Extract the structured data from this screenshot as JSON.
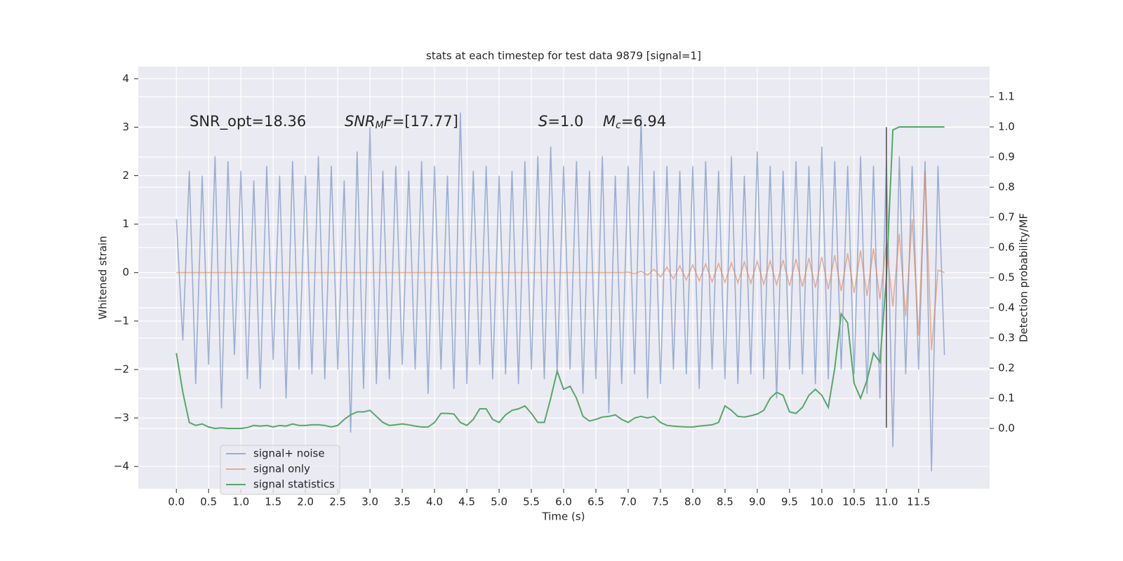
{
  "chart_data": {
    "type": "line",
    "title": "stats at each timestep for test data 9879 [signal=1]",
    "xlabel": "Time (s)",
    "ylabel": "Whitened strain",
    "y2label": "Detection probability/MF",
    "xlim": [
      -0.59,
      12.6
    ],
    "ylim": [
      -4.46,
      4.25
    ],
    "y2lim": [
      -0.2,
      1.2
    ],
    "xticks": [
      {
        "value": 0,
        "label": "0.0"
      },
      0.5,
      {
        "value": 1,
        "label": "1.0"
      },
      1.5,
      {
        "value": 2,
        "label": "2.0"
      },
      2.5,
      {
        "value": 3,
        "label": "3.0"
      },
      3.5,
      {
        "value": 4,
        "label": "4.0"
      },
      4.5,
      {
        "value": 5,
        "label": "5.0"
      },
      5.5,
      {
        "value": 6,
        "label": "6.0"
      },
      6.5,
      {
        "value": 7,
        "label": "7.0"
      },
      7.5,
      {
        "value": 8,
        "label": "8.0"
      },
      8.5,
      {
        "value": 9,
        "label": "9.0"
      },
      9.5,
      {
        "value": 10,
        "label": "10.0"
      },
      10.5,
      {
        "value": 11,
        "label": "11.0"
      },
      11.5
    ],
    "yticks": [
      {
        "value": -4,
        "label": "−4"
      },
      {
        "value": -3,
        "label": "−3"
      },
      {
        "value": -2,
        "label": "−2"
      },
      {
        "value": -1,
        "label": "−1"
      },
      0,
      1,
      2,
      3,
      4
    ],
    "y2ticks": [
      {
        "value": 0,
        "label": "0.0"
      },
      0.1,
      0.2,
      0.3,
      0.4,
      0.5,
      0.6,
      0.7,
      0.8,
      0.9,
      {
        "value": 1,
        "label": "1.0"
      },
      1.1
    ],
    "grid": true,
    "legend": "lower left",
    "x": [
      0.0,
      0.1,
      0.2,
      0.3,
      0.4,
      0.5,
      0.6,
      0.7,
      0.8,
      0.9,
      1.0,
      1.1,
      1.2,
      1.3,
      1.4,
      1.5,
      1.6,
      1.7,
      1.8,
      1.9,
      2.0,
      2.1,
      2.2,
      2.3,
      2.4,
      2.5,
      2.6,
      2.7,
      2.8,
      2.9,
      3.0,
      3.1,
      3.2,
      3.3,
      3.4,
      3.5,
      3.6,
      3.7,
      3.8,
      3.9,
      4.0,
      4.1,
      4.2,
      4.3,
      4.4,
      4.5,
      4.6,
      4.7,
      4.8,
      4.9,
      5.0,
      5.1,
      5.2,
      5.3,
      5.4,
      5.5,
      5.6,
      5.7,
      5.8,
      5.9,
      6.0,
      6.1,
      6.2,
      6.3,
      6.4,
      6.5,
      6.6,
      6.7,
      6.8,
      6.9,
      7.0,
      7.1,
      7.2,
      7.3,
      7.4,
      7.5,
      7.6,
      7.7,
      7.8,
      7.9,
      8.0,
      8.1,
      8.2,
      8.3,
      8.4,
      8.5,
      8.6,
      8.7,
      8.8,
      8.9,
      9.0,
      9.1,
      9.2,
      9.3,
      9.4,
      9.5,
      9.6,
      9.7,
      9.8,
      9.9,
      10.0,
      10.1,
      10.2,
      10.3,
      10.4,
      10.5,
      10.6,
      10.7,
      10.8,
      10.9,
      11.0,
      11.1,
      11.2,
      11.3,
      11.4,
      11.5,
      11.6,
      11.7,
      11.8,
      11.9
    ],
    "series": [
      {
        "name": "signal+ noise",
        "color": "#4c72b0",
        "alpha": 0.5,
        "values": [
          1.1,
          -1.4,
          2.1,
          -2.3,
          2.0,
          -1.9,
          2.4,
          -2.8,
          2.3,
          -1.7,
          2.1,
          -2.2,
          1.9,
          -2.4,
          2.2,
          -1.8,
          2.0,
          -2.6,
          2.3,
          -2.0,
          2.0,
          -2.1,
          2.4,
          -2.2,
          2.2,
          -2.0,
          1.9,
          -3.3,
          2.5,
          -2.4,
          3.0,
          -2.3,
          2.1,
          -2.2,
          2.2,
          -1.9,
          2.1,
          -2.0,
          2.3,
          -2.5,
          2.2,
          -2.0,
          2.0,
          -2.4,
          3.3,
          -2.3,
          2.1,
          -1.9,
          2.2,
          -2.2,
          2.0,
          -2.1,
          2.1,
          -2.3,
          2.3,
          -2.0,
          2.4,
          -2.2,
          2.6,
          -2.1,
          2.2,
          -2.0,
          2.3,
          -2.5,
          2.1,
          -2.2,
          2.4,
          -2.9,
          2.0,
          -2.3,
          2.2,
          -2.1,
          3.2,
          -2.6,
          2.1,
          -2.3,
          2.2,
          -2.0,
          2.1,
          -2.1,
          2.2,
          -2.4,
          2.3,
          -2.0,
          2.1,
          -2.2,
          2.4,
          -2.3,
          2.0,
          -2.1,
          2.5,
          -2.2,
          2.2,
          -2.6,
          2.1,
          -2.0,
          2.3,
          -2.1,
          2.2,
          -2.3,
          2.6,
          -2.2,
          2.3,
          -2.0,
          2.2,
          -2.1,
          2.4,
          -2.5,
          2.2,
          -2.6,
          2.3,
          -3.6,
          2.4,
          -2.1,
          2.2,
          -2.0,
          2.3,
          -4.1,
          2.2,
          -1.7
        ]
      },
      {
        "name": "signal only",
        "color": "#dd8452",
        "alpha": 0.6,
        "values": [
          0,
          0,
          0,
          0,
          0,
          0,
          0,
          0,
          0,
          0,
          0,
          0,
          0,
          0,
          0,
          0,
          0,
          0,
          0,
          0,
          0,
          0,
          0,
          0,
          0,
          0,
          0,
          0,
          0,
          0,
          0,
          0,
          0,
          0,
          0,
          0,
          0,
          0,
          0,
          0,
          0,
          0,
          0,
          0,
          0,
          0,
          0,
          0,
          0,
          0,
          0,
          0,
          0,
          0,
          0,
          0,
          0,
          0,
          0,
          0,
          0,
          0,
          0,
          0,
          0,
          0,
          0,
          0,
          0,
          0,
          0.01,
          -0.02,
          0.03,
          -0.05,
          0.07,
          -0.09,
          0.11,
          -0.13,
          0.14,
          -0.15,
          0.16,
          -0.17,
          0.18,
          -0.19,
          0.19,
          -0.2,
          0.2,
          -0.21,
          0.22,
          -0.22,
          0.23,
          -0.24,
          0.24,
          -0.25,
          0.26,
          -0.27,
          0.28,
          -0.29,
          0.3,
          -0.31,
          0.32,
          -0.34,
          0.36,
          -0.38,
          0.4,
          -0.42,
          0.45,
          -0.48,
          0.5,
          -0.55,
          0.6,
          -0.7,
          0.8,
          -0.9,
          1.1,
          -1.3,
          2.1,
          -1.6,
          0.05,
          0
        ]
      },
      {
        "name": "signal statistics",
        "color": "#55a868",
        "alpha": 1,
        "axis": "y2",
        "values": [
          0.25,
          0.12,
          0.02,
          0.01,
          0.015,
          0.005,
          0.0,
          0.002,
          0.0,
          0.0,
          0.0,
          0.003,
          0.01,
          0.008,
          0.01,
          0.005,
          0.01,
          0.008,
          0.015,
          0.01,
          0.01,
          0.012,
          0.012,
          0.01,
          0.005,
          0.01,
          0.03,
          0.045,
          0.055,
          0.055,
          0.06,
          0.04,
          0.02,
          0.01,
          0.012,
          0.015,
          0.012,
          0.008,
          0.005,
          0.005,
          0.02,
          0.05,
          0.05,
          0.048,
          0.02,
          0.01,
          0.03,
          0.065,
          0.065,
          0.03,
          0.02,
          0.045,
          0.06,
          0.065,
          0.075,
          0.05,
          0.02,
          0.02,
          0.1,
          0.19,
          0.13,
          0.14,
          0.1,
          0.04,
          0.025,
          0.03,
          0.038,
          0.04,
          0.045,
          0.03,
          0.02,
          0.035,
          0.04,
          0.035,
          0.04,
          0.02,
          0.01,
          0.008,
          0.006,
          0.005,
          0.005,
          0.008,
          0.01,
          0.012,
          0.02,
          0.075,
          0.06,
          0.04,
          0.038,
          0.042,
          0.048,
          0.06,
          0.1,
          0.12,
          0.11,
          0.055,
          0.05,
          0.07,
          0.11,
          0.13,
          0.11,
          0.07,
          0.2,
          0.38,
          0.35,
          0.15,
          0.1,
          0.16,
          0.25,
          0.22,
          0.5,
          0.99,
          1.0,
          1.0,
          1.0,
          1.0,
          1.0,
          1.0,
          1.0,
          1.0
        ]
      }
    ],
    "vline": {
      "x": 11.0,
      "ymin": -3.2,
      "ymax": 3.0,
      "color": "#555555"
    },
    "annotations": [
      {
        "parts": [
          {
            "text": "SNR_opt=18.36"
          }
        ]
      },
      {
        "parts": [
          {
            "text": "SNR",
            "italic": true
          },
          {
            "text": "M",
            "italic": true,
            "sub": true
          },
          {
            "text": "F",
            "italic": true
          },
          {
            "text": "=[17.77]"
          }
        ]
      },
      {
        "parts": [
          {
            "text": "S",
            "italic": true
          },
          {
            "text": "=1.0"
          }
        ]
      },
      {
        "parts": [
          {
            "text": "M",
            "italic": true
          },
          {
            "text": "c",
            "italic": true,
            "sub": true
          },
          {
            "text": "=6.94"
          }
        ]
      }
    ]
  }
}
